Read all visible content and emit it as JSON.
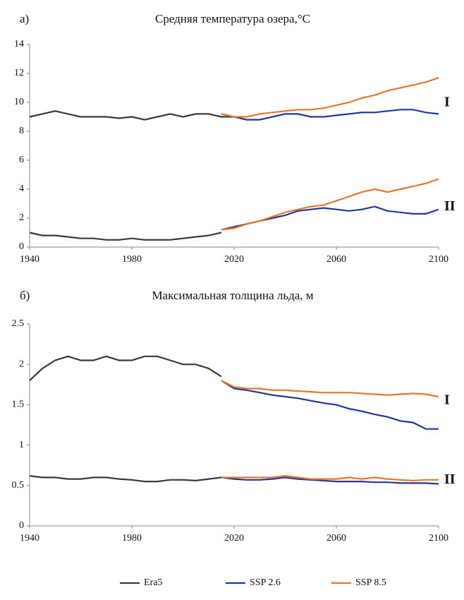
{
  "chart_data": [
    {
      "type": "line",
      "panel": "а)",
      "title": "Средняя температура озера,°C",
      "xlim": [
        1940,
        2100
      ],
      "xticks": [
        1940,
        1980,
        2020,
        2060,
        2100
      ],
      "ylim": [
        0,
        14
      ],
      "yticks": [
        0,
        2,
        4,
        6,
        8,
        10,
        12,
        14
      ],
      "groups": [
        {
          "label": "I",
          "series": [
            {
              "name": "Era5",
              "color": "#3a3a3a",
              "x": [
                1940,
                1945,
                1950,
                1955,
                1960,
                1965,
                1970,
                1975,
                1980,
                1985,
                1990,
                1995,
                2000,
                2005,
                2010,
                2015,
                2020
              ],
              "values": [
                9.0,
                9.2,
                9.4,
                9.2,
                9.0,
                9.0,
                9.0,
                8.9,
                9.0,
                8.8,
                9.0,
                9.2,
                9.0,
                9.2,
                9.2,
                9.0,
                9.0
              ]
            },
            {
              "name": "SSP 2.6",
              "color": "#22379a",
              "x": [
                2015,
                2020,
                2025,
                2030,
                2035,
                2040,
                2045,
                2050,
                2055,
                2060,
                2065,
                2070,
                2075,
                2080,
                2085,
                2090,
                2095,
                2100
              ],
              "values": [
                9.2,
                9.0,
                8.8,
                8.8,
                9.0,
                9.2,
                9.2,
                9.0,
                9.0,
                9.1,
                9.2,
                9.3,
                9.3,
                9.4,
                9.5,
                9.5,
                9.3,
                9.2
              ]
            },
            {
              "name": "SSP 8.5",
              "color": "#e8772a",
              "x": [
                2015,
                2020,
                2025,
                2030,
                2035,
                2040,
                2045,
                2050,
                2055,
                2060,
                2065,
                2070,
                2075,
                2080,
                2085,
                2090,
                2095,
                2100
              ],
              "values": [
                9.2,
                9.0,
                9.0,
                9.2,
                9.3,
                9.4,
                9.5,
                9.5,
                9.6,
                9.8,
                10.0,
                10.3,
                10.5,
                10.8,
                11.0,
                11.2,
                11.4,
                11.7
              ]
            }
          ]
        },
        {
          "label": "II",
          "series": [
            {
              "name": "Era5",
              "color": "#3a3a3a",
              "x": [
                1940,
                1945,
                1950,
                1955,
                1960,
                1965,
                1970,
                1975,
                1980,
                1985,
                1990,
                1995,
                2000,
                2005,
                2010,
                2015
              ],
              "values": [
                1.0,
                0.8,
                0.8,
                0.7,
                0.6,
                0.6,
                0.5,
                0.5,
                0.6,
                0.5,
                0.5,
                0.5,
                0.6,
                0.7,
                0.8,
                1.0
              ]
            },
            {
              "name": "SSP 2.6",
              "color": "#22379a",
              "x": [
                2015,
                2020,
                2025,
                2030,
                2035,
                2040,
                2045,
                2050,
                2055,
                2060,
                2065,
                2070,
                2075,
                2080,
                2085,
                2090,
                2095,
                2100
              ],
              "values": [
                1.2,
                1.4,
                1.6,
                1.8,
                2.0,
                2.2,
                2.5,
                2.6,
                2.7,
                2.6,
                2.5,
                2.6,
                2.8,
                2.5,
                2.4,
                2.3,
                2.3,
                2.6
              ]
            },
            {
              "name": "SSP 8.5",
              "color": "#e8772a",
              "x": [
                2015,
                2020,
                2025,
                2030,
                2035,
                2040,
                2045,
                2050,
                2055,
                2060,
                2065,
                2070,
                2075,
                2080,
                2085,
                2090,
                2095,
                2100
              ],
              "values": [
                1.2,
                1.3,
                1.6,
                1.8,
                2.1,
                2.4,
                2.6,
                2.8,
                2.9,
                3.2,
                3.5,
                3.8,
                4.0,
                3.8,
                4.0,
                4.2,
                4.4,
                4.7
              ]
            }
          ]
        }
      ]
    },
    {
      "type": "line",
      "panel": "б)",
      "title": "Максимальная толщина льда, м",
      "xlim": [
        1940,
        2100
      ],
      "xticks": [
        1940,
        1980,
        2020,
        2060,
        2100
      ],
      "ylim": [
        0,
        2.5
      ],
      "yticks": [
        0,
        0.5,
        1,
        1.5,
        2,
        2.5
      ],
      "groups": [
        {
          "label": "I",
          "series": [
            {
              "name": "Era5",
              "color": "#3a3a3a",
              "x": [
                1940,
                1945,
                1950,
                1955,
                1960,
                1965,
                1970,
                1975,
                1980,
                1985,
                1990,
                1995,
                2000,
                2005,
                2010,
                2015
              ],
              "values": [
                1.8,
                1.95,
                2.05,
                2.1,
                2.05,
                2.05,
                2.1,
                2.05,
                2.05,
                2.1,
                2.1,
                2.05,
                2.0,
                2.0,
                1.95,
                1.85
              ]
            },
            {
              "name": "SSP 2.6",
              "color": "#22379a",
              "x": [
                2015,
                2020,
                2025,
                2030,
                2035,
                2040,
                2045,
                2050,
                2055,
                2060,
                2065,
                2070,
                2075,
                2080,
                2085,
                2090,
                2095,
                2100
              ],
              "values": [
                1.8,
                1.7,
                1.68,
                1.65,
                1.62,
                1.6,
                1.58,
                1.55,
                1.52,
                1.5,
                1.45,
                1.42,
                1.38,
                1.35,
                1.3,
                1.28,
                1.2,
                1.2
              ]
            },
            {
              "name": "SSP 8.5",
              "color": "#e8772a",
              "x": [
                2015,
                2020,
                2025,
                2030,
                2035,
                2040,
                2045,
                2050,
                2055,
                2060,
                2065,
                2070,
                2075,
                2080,
                2085,
                2090,
                2095,
                2100
              ],
              "values": [
                1.8,
                1.72,
                1.7,
                1.7,
                1.68,
                1.68,
                1.67,
                1.66,
                1.65,
                1.65,
                1.65,
                1.64,
                1.63,
                1.62,
                1.63,
                1.64,
                1.63,
                1.6
              ]
            }
          ]
        },
        {
          "label": "II",
          "series": [
            {
              "name": "Era5",
              "color": "#3a3a3a",
              "x": [
                1940,
                1945,
                1950,
                1955,
                1960,
                1965,
                1970,
                1975,
                1980,
                1985,
                1990,
                1995,
                2000,
                2005,
                2010,
                2015
              ],
              "values": [
                0.62,
                0.6,
                0.6,
                0.58,
                0.58,
                0.6,
                0.6,
                0.58,
                0.57,
                0.55,
                0.55,
                0.57,
                0.57,
                0.56,
                0.58,
                0.6
              ]
            },
            {
              "name": "SSP 2.6",
              "color": "#22379a",
              "x": [
                2015,
                2020,
                2025,
                2030,
                2035,
                2040,
                2045,
                2050,
                2055,
                2060,
                2065,
                2070,
                2075,
                2080,
                2085,
                2090,
                2095,
                2100
              ],
              "values": [
                0.6,
                0.58,
                0.57,
                0.57,
                0.58,
                0.6,
                0.58,
                0.57,
                0.56,
                0.55,
                0.55,
                0.55,
                0.54,
                0.54,
                0.53,
                0.53,
                0.53,
                0.52
              ]
            },
            {
              "name": "SSP 8.5",
              "color": "#e8772a",
              "x": [
                2015,
                2020,
                2025,
                2030,
                2035,
                2040,
                2045,
                2050,
                2055,
                2060,
                2065,
                2070,
                2075,
                2080,
                2085,
                2090,
                2095,
                2100
              ],
              "values": [
                0.6,
                0.6,
                0.6,
                0.6,
                0.6,
                0.62,
                0.6,
                0.58,
                0.58,
                0.58,
                0.6,
                0.58,
                0.6,
                0.58,
                0.57,
                0.56,
                0.57,
                0.57
              ]
            }
          ]
        }
      ]
    }
  ]
}
